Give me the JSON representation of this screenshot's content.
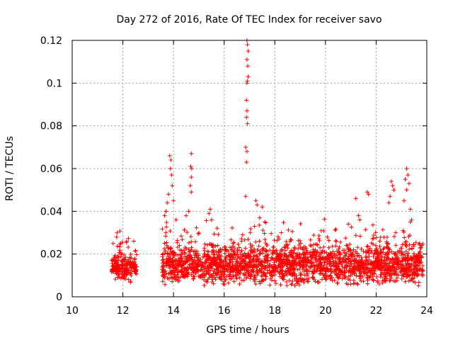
{
  "chart_data": {
    "type": "scatter",
    "title": "Day 272 of 2016, Rate Of TEC Index for receiver savo",
    "xlabel": "GPS time / hours",
    "ylabel": "ROTI / TECUs",
    "xlim": [
      10,
      24
    ],
    "ylim": [
      0,
      0.12
    ],
    "xticks": [
      10,
      12,
      14,
      16,
      18,
      20,
      22,
      24
    ],
    "yticks": [
      0,
      0.02,
      0.04,
      0.06,
      0.08,
      0.1,
      0.12
    ],
    "xtick_labels": [
      "10",
      "12",
      "14",
      "16",
      "18",
      "20",
      "22",
      "24"
    ],
    "ytick_labels": [
      "0",
      "0.02",
      "0.04",
      "0.06",
      "0.08",
      "0.1",
      "0.12"
    ],
    "grid": true,
    "marker": "+",
    "color": "#ff0000",
    "series": [
      {
        "name": "ROTI",
        "segments": [
          {
            "x_start": 11.55,
            "x_end": 12.55,
            "base": 0.014,
            "spread": 0.004,
            "peaks": [
              [
                12.1,
                0.031
              ],
              [
                12.05,
                0.028
              ],
              [
                12.45,
                0.022
              ]
            ]
          },
          {
            "x_start": 13.55,
            "x_end": 23.85,
            "base": 0.015,
            "spread": 0.006,
            "peaks": []
          }
        ],
        "peaks": [
          [
            13.85,
            0.066
          ],
          [
            13.9,
            0.064
          ],
          [
            13.88,
            0.06
          ],
          [
            13.92,
            0.057
          ],
          [
            13.95,
            0.052
          ],
          [
            13.8,
            0.048
          ],
          [
            13.75,
            0.044
          ],
          [
            13.7,
            0.04
          ],
          [
            13.65,
            0.038
          ],
          [
            14.0,
            0.045
          ],
          [
            14.1,
            0.036
          ],
          [
            14.7,
            0.067
          ],
          [
            14.68,
            0.061
          ],
          [
            14.72,
            0.06
          ],
          [
            14.7,
            0.056
          ],
          [
            14.66,
            0.052
          ],
          [
            14.7,
            0.049
          ],
          [
            14.6,
            0.04
          ],
          [
            14.5,
            0.038
          ],
          [
            15.45,
            0.041
          ],
          [
            15.4,
            0.039
          ],
          [
            15.5,
            0.036
          ],
          [
            16.9,
            0.12
          ],
          [
            16.92,
            0.118
          ],
          [
            16.95,
            0.115
          ],
          [
            16.9,
            0.111
          ],
          [
            16.93,
            0.108
          ],
          [
            16.95,
            0.103
          ],
          [
            16.92,
            0.101
          ],
          [
            16.9,
            0.1
          ],
          [
            16.88,
            0.092
          ],
          [
            16.9,
            0.087
          ],
          [
            16.88,
            0.084
          ],
          [
            16.92,
            0.081
          ],
          [
            16.85,
            0.07
          ],
          [
            16.9,
            0.068
          ],
          [
            16.88,
            0.063
          ],
          [
            16.85,
            0.047
          ],
          [
            17.25,
            0.045
          ],
          [
            17.3,
            0.043
          ],
          [
            17.5,
            0.042
          ],
          [
            17.4,
            0.037
          ],
          [
            17.6,
            0.035
          ],
          [
            17.2,
            0.033
          ],
          [
            20.9,
            0.034
          ],
          [
            21.2,
            0.046
          ],
          [
            21.3,
            0.038
          ],
          [
            21.35,
            0.036
          ],
          [
            21.65,
            0.049
          ],
          [
            21.7,
            0.048
          ],
          [
            22.6,
            0.054
          ],
          [
            22.65,
            0.052
          ],
          [
            22.7,
            0.05
          ],
          [
            22.55,
            0.047
          ],
          [
            22.5,
            0.044
          ],
          [
            23.2,
            0.06
          ],
          [
            23.25,
            0.057
          ],
          [
            23.15,
            0.055
          ],
          [
            23.3,
            0.053
          ],
          [
            23.2,
            0.05
          ],
          [
            23.1,
            0.045
          ],
          [
            23.35,
            0.041
          ],
          [
            23.4,
            0.036
          ],
          [
            23.35,
            0.035
          ]
        ]
      }
    ]
  }
}
